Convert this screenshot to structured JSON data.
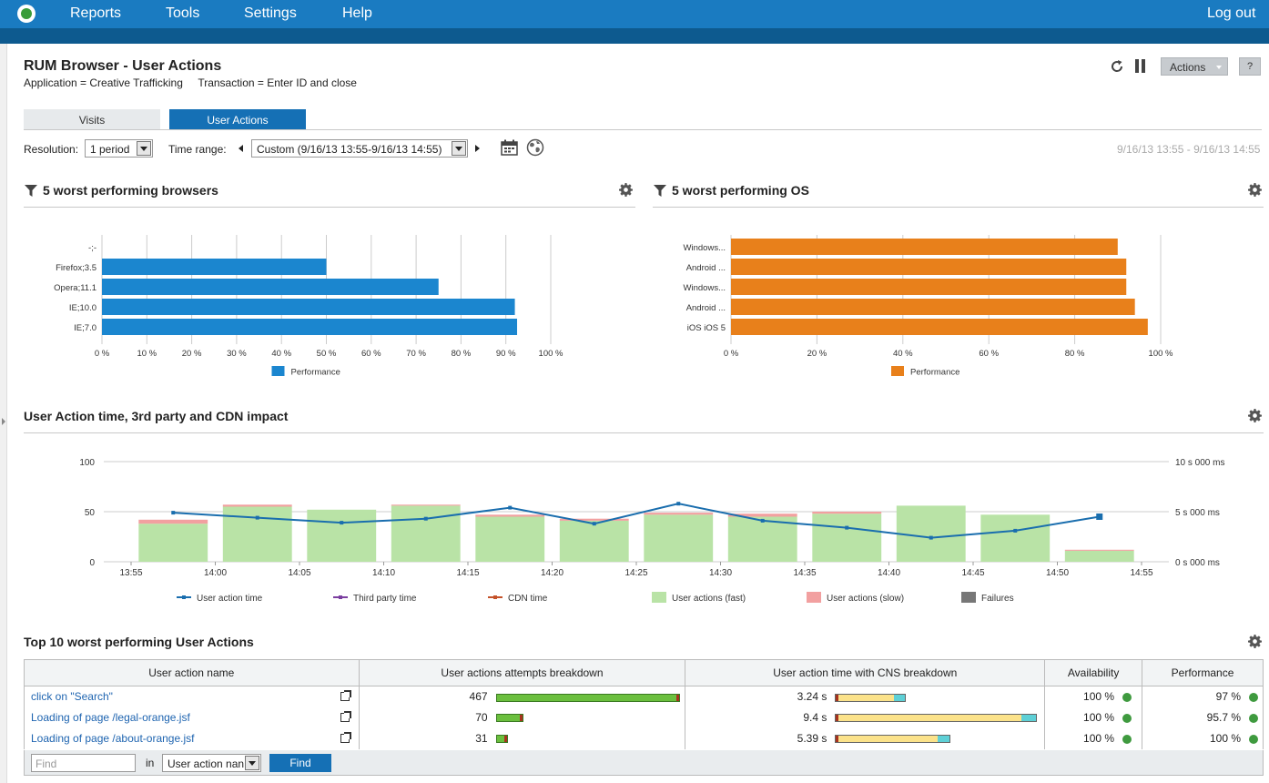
{
  "nav": {
    "logo_icon": "app-logo-icon",
    "menu": [
      "Reports",
      "Tools",
      "Settings",
      "Help"
    ],
    "logout": "Log out"
  },
  "header": {
    "title": "RUM Browser - User Actions",
    "subtitle": "Application = Creative Trafficking     Transaction = Enter ID and close",
    "actions_label": "Actions",
    "help_label": "?",
    "icons": [
      "refresh-icon",
      "pause-icon"
    ]
  },
  "tabs": [
    {
      "label": "Visits",
      "active": false
    },
    {
      "label": "User Actions",
      "active": true
    }
  ],
  "filters": {
    "resolution_label": "Resolution:",
    "resolution_value": "1 period",
    "time_range_label": "Time range:",
    "time_range_value": "Custom (9/16/13 13:55-9/16/13 14:55)",
    "date_range": "9/16/13 13:55 - 9/16/13 14:55",
    "icons": [
      "calendar-icon",
      "globe-icon"
    ]
  },
  "sections": {
    "browsers_title": "5 worst performing browsers",
    "os_title": "5 worst performing OS",
    "impact_title": "User Action time, 3rd party and CDN impact",
    "top10_title": "Top 10 worst performing User Actions"
  },
  "chart_data": [
    {
      "type": "bar",
      "orientation": "horizontal",
      "categories": [
        "-;-",
        "Firefox;3.5",
        "Opera;11.1",
        "IE;10.0",
        "IE;7.0"
      ],
      "series": [
        {
          "name": "Performance",
          "values": [
            0,
            50,
            75,
            92,
            92.5
          ],
          "color": "#1b86cf"
        }
      ],
      "xticks": [
        "0 %",
        "10 %",
        "20 %",
        "30 %",
        "40 %",
        "50 %",
        "60 %",
        "70 %",
        "80 %",
        "90 %",
        "100 %"
      ],
      "xlim": [
        0,
        100
      ],
      "grid": true,
      "legend": "bottom"
    },
    {
      "type": "bar",
      "orientation": "horizontal",
      "categories": [
        "Windows...",
        "Android ...",
        "Windows...",
        "Android ...",
        "iOS iOS 5"
      ],
      "series": [
        {
          "name": "Performance",
          "values": [
            90,
            92,
            92,
            94,
            97
          ],
          "color": "#e8801b"
        }
      ],
      "xticks": [
        "0 %",
        "20 %",
        "40 %",
        "60 %",
        "80 %",
        "100 %"
      ],
      "xlim": [
        0,
        100
      ],
      "grid": true,
      "legend": "bottom"
    },
    {
      "type": "bar+line",
      "x": [
        "13:55",
        "14:00",
        "14:05",
        "14:10",
        "14:15",
        "14:20",
        "14:25",
        "14:30",
        "14:35",
        "14:40",
        "14:45",
        "14:50",
        "14:55"
      ],
      "yticks_left": [
        "100",
        "50",
        "0"
      ],
      "yticks_right": [
        "10 s 000 ms",
        "5 s 000 ms",
        "0 s 000 ms"
      ],
      "ylim_left": [
        0,
        100
      ],
      "ylim_right_ms": [
        0,
        10000
      ],
      "bars_fast": [
        38,
        55,
        52,
        56,
        45,
        41,
        47,
        45,
        48,
        56,
        47,
        11
      ],
      "bars_slow": [
        4,
        2,
        0,
        1,
        2,
        2,
        2,
        3,
        2,
        0,
        0,
        1
      ],
      "user_action_time_ms": [
        4900,
        4400,
        3900,
        4300,
        5400,
        3800,
        5800,
        4100,
        3400,
        2400,
        3100,
        4500
      ],
      "legend": [
        {
          "name": "User action time",
          "color": "#1a6eae"
        },
        {
          "name": "Third party time",
          "color": "#7b3fa0"
        },
        {
          "name": "CDN time",
          "color": "#c4522a"
        },
        {
          "name": "User actions (fast)",
          "color": "#b9e3a6"
        },
        {
          "name": "User actions (slow)",
          "color": "#f2a0a0"
        },
        {
          "name": "Failures",
          "color": "#777777"
        }
      ],
      "legend_position": "bottom",
      "grid": true
    }
  ],
  "table": {
    "columns": [
      "User action name",
      "User actions attempts breakdown",
      "User action time with CNS breakdown",
      "Availability",
      "Performance"
    ],
    "rows": [
      {
        "name": "click on \"Search\"",
        "attempts": "467",
        "attempts_fraction": 1.0,
        "time": "3.24 s",
        "time_fraction": 0.35,
        "availability": "100 %",
        "performance": "97 %"
      },
      {
        "name": "Loading of page /legal-orange.jsf",
        "attempts": "70",
        "attempts_fraction": 0.15,
        "time": "9.4 s",
        "time_fraction": 1.0,
        "availability": "100 %",
        "performance": "95.7 %"
      },
      {
        "name": "Loading of page /about-orange.jsf",
        "attempts": "31",
        "attempts_fraction": 0.066,
        "time": "5.39 s",
        "time_fraction": 0.57,
        "availability": "100 %",
        "performance": "100 %"
      }
    ]
  },
  "footer": {
    "find_placeholder": "Find",
    "in_label": "in",
    "field_value": "User action nan",
    "find_button": "Find"
  }
}
